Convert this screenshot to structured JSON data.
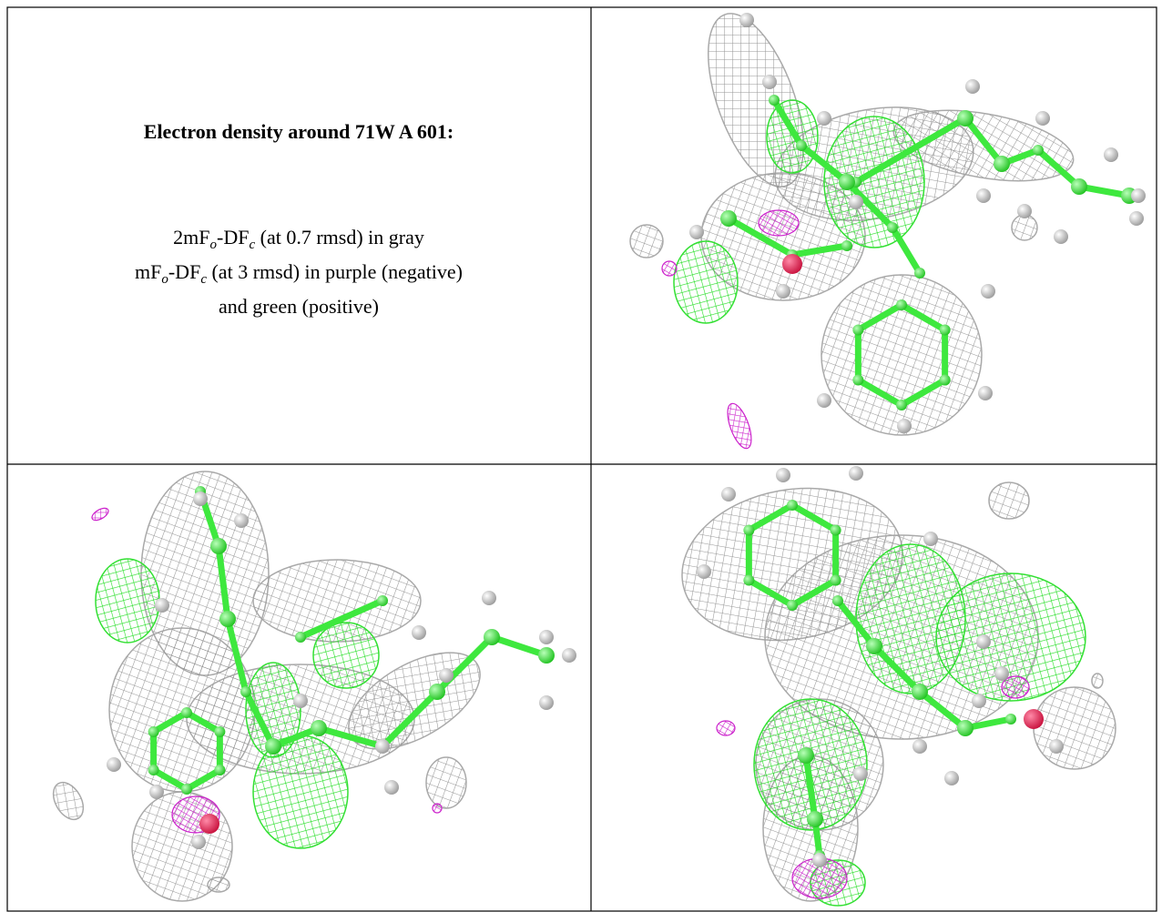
{
  "figure": {
    "title": "Electron density around 71W A 601:",
    "legend_lines": [
      {
        "parts": [
          "2mF",
          "o",
          "-DF",
          "c",
          " (at 0.7 rmsd) in gray"
        ]
      },
      {
        "parts": [
          "mF",
          "o",
          "-DF",
          "c",
          " (at 3 rmsd) in purple (negative)"
        ]
      },
      {
        "parts": [
          "and green (positive)"
        ]
      }
    ]
  }
}
